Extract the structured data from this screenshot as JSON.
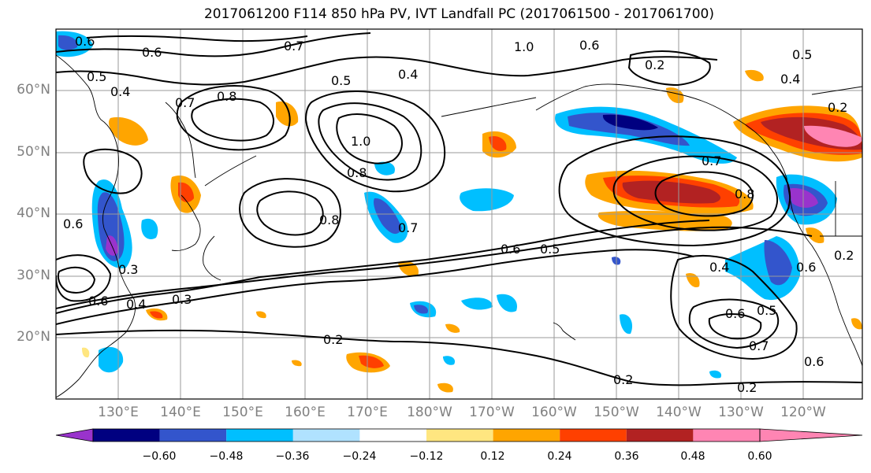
{
  "title": "2017061200 F114 850 hPa PV, IVT Landfall PC (2017061500 - 2017061700)",
  "lat_labels": [
    "60°N",
    "50°N",
    "40°N",
    "30°N",
    "20°N"
  ],
  "lon_labels": [
    "130°E",
    "140°E",
    "150°E",
    "160°E",
    "170°E",
    "180°W",
    "170°W",
    "160°W",
    "150°W",
    "140°W",
    "130°W",
    "120°W"
  ],
  "contour_labels": [
    "0.6",
    "0.6",
    "0.7",
    "0.5",
    "0.4",
    "0.7",
    "0.8",
    "1.0",
    "0.8",
    "0.8",
    "0.7",
    "0.4",
    "1.0",
    "0.6",
    "0.2",
    "0.5",
    "0.4",
    "0.2",
    "0.7",
    "0.8",
    "0.6",
    "0.5",
    "0.4",
    "0.6",
    "0.3",
    "0.6",
    "0.4",
    "0.3",
    "0.2",
    "0.6",
    "0.5",
    "0.7",
    "0.6",
    "0.2",
    "0.2",
    "0.5",
    "0.6",
    "0.2"
  ],
  "colorbar": {
    "ticks": [
      "−0.60",
      "−0.48",
      "−0.36",
      "−0.24",
      "−0.12",
      "0.12",
      "0.24",
      "0.36",
      "0.48",
      "0.60"
    ],
    "colors": [
      "#9933cc",
      "#000080",
      "#3355cc",
      "#00bfff",
      "#b0e2ff",
      "#ffffff",
      "#ffe680",
      "#ffa500",
      "#ff4000",
      "#b22222",
      "#ff85b3"
    ]
  },
  "map": {
    "projection": "cylindrical",
    "lon_range": [
      "120°E",
      "110°W"
    ],
    "lat_range": [
      "10°N",
      "70°N"
    ],
    "grid": true,
    "field": "850 hPa PV contours",
    "shading": "IVT Landfall PC"
  }
}
